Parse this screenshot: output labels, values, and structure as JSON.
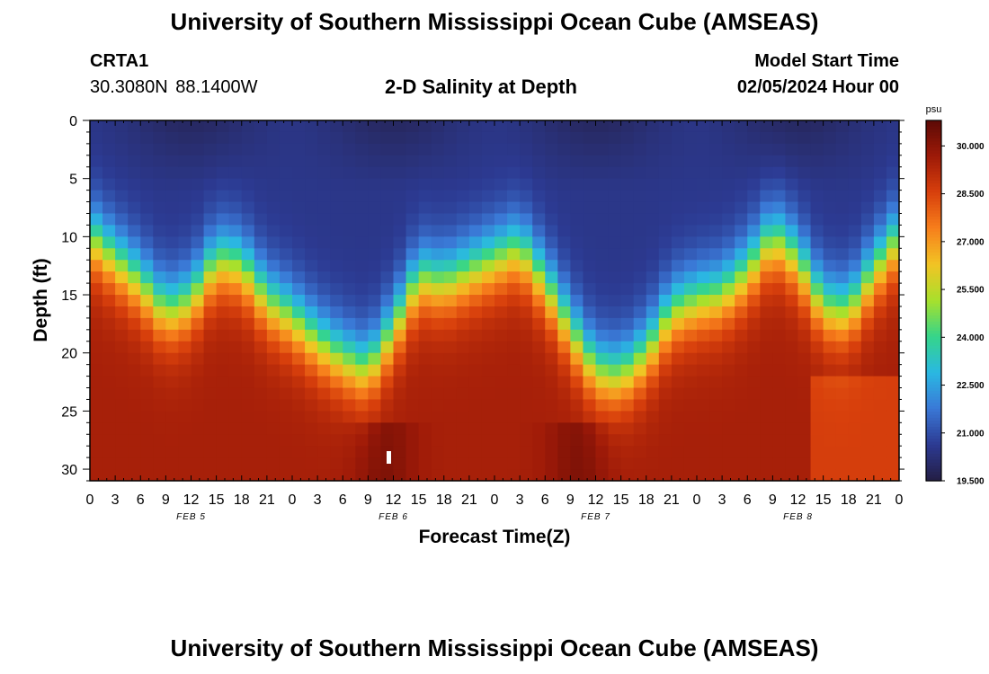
{
  "header": {
    "title": "University of Southern Mississippi Ocean Cube (AMSEAS)",
    "station": "CRTA1",
    "coordinates": "30.3080N  88.1400W",
    "subtitle": "2-D Salinity at Depth",
    "model_start_label": "Model Start Time",
    "model_start_value": "02/05/2024 Hour 00"
  },
  "footer": {
    "title": "University of Southern Mississippi Ocean Cube (AMSEAS)"
  },
  "chart_data": {
    "type": "heatmap",
    "title": "2-D Salinity at Depth",
    "xlabel": "Forecast Time(Z)",
    "ylabel": "Depth (ft)",
    "x_tick_labels": [
      "0",
      "3",
      "6",
      "9",
      "12",
      "15",
      "18",
      "21",
      "0",
      "3",
      "6",
      "9",
      "12",
      "15",
      "18",
      "21",
      "0",
      "3",
      "6",
      "9",
      "12",
      "15",
      "18",
      "21",
      "0",
      "3",
      "6",
      "9",
      "12",
      "15",
      "18",
      "21",
      "0"
    ],
    "date_labels": [
      {
        "label": "FEB 5",
        "hour": 12
      },
      {
        "label": "FEB 6",
        "hour": 36
      },
      {
        "label": "FEB 7",
        "hour": 60
      },
      {
        "label": "FEB 8",
        "hour": 84
      }
    ],
    "xlim_hours": [
      0,
      96
    ],
    "y_ticks": [
      0,
      5,
      10,
      15,
      20,
      25,
      30
    ],
    "ylim_ft": [
      0,
      31
    ],
    "colorbar": {
      "unit": "psu",
      "ticks": [
        "30.000",
        "28.500",
        "27.000",
        "25.500",
        "24.000",
        "22.500",
        "21.000",
        "19.500"
      ],
      "range": [
        19.5,
        30.8
      ],
      "colors": [
        "#241e44",
        "#2c3a92",
        "#3a78d6",
        "#2ab8e2",
        "#35d58a",
        "#a8e02c",
        "#f2c424",
        "#f77f1c",
        "#d8400c",
        "#9e1a08",
        "#5c0a06"
      ]
    },
    "halocline_depth_ft_at_hour": [
      [
        0,
        10
      ],
      [
        6,
        14
      ],
      [
        9,
        16.5
      ],
      [
        12,
        15.5
      ],
      [
        15,
        12
      ],
      [
        18,
        12.5
      ],
      [
        21,
        15.5
      ],
      [
        24,
        17
      ],
      [
        27,
        19
      ],
      [
        30,
        20.5
      ],
      [
        33,
        21.5
      ],
      [
        36,
        18
      ],
      [
        39,
        13.5
      ],
      [
        42,
        14
      ],
      [
        45,
        13
      ],
      [
        48,
        12
      ],
      [
        51,
        11
      ],
      [
        54,
        14
      ],
      [
        57,
        18
      ],
      [
        60,
        21.5
      ],
      [
        63,
        22
      ],
      [
        66,
        20
      ],
      [
        69,
        16.5
      ],
      [
        72,
        15.5
      ],
      [
        75,
        15
      ],
      [
        78,
        13
      ],
      [
        81,
        10
      ],
      [
        84,
        12
      ],
      [
        87,
        16
      ],
      [
        90,
        16.5
      ],
      [
        93,
        13
      ],
      [
        96,
        10
      ]
    ],
    "surface_salinity_psu": 20.5,
    "bottom_salinity_psu": 29.5
  },
  "axes_ticks_style": "inward"
}
